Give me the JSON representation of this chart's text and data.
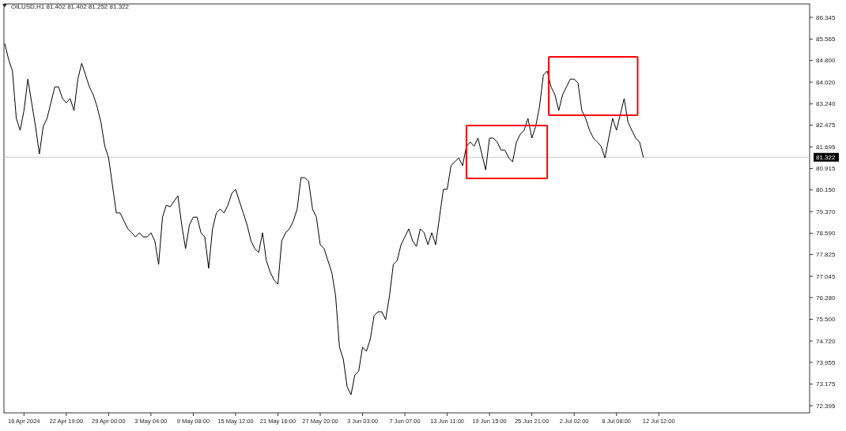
{
  "chart_data": {
    "type": "line",
    "title": "OILUSD,H1  81.402 81.402 81.252 81.322",
    "categories": [
      null,
      null,
      null,
      null,
      null,
      "16 Apr 2024",
      null,
      null,
      null,
      null,
      null,
      null,
      null,
      null,
      null,
      null,
      "22 Apr 19:00",
      null,
      null,
      null,
      null,
      null,
      null,
      null,
      null,
      null,
      null,
      "29 Apr 00:00",
      null,
      null,
      null,
      null,
      null,
      null,
      null,
      null,
      null,
      null,
      "3 May 04:00",
      null,
      null,
      null,
      null,
      null,
      null,
      null,
      null,
      null,
      null,
      "9 May 08:00",
      null,
      null,
      null,
      null,
      null,
      null,
      null,
      null,
      null,
      null,
      "15 May 12:00",
      null,
      null,
      null,
      null,
      null,
      null,
      null,
      null,
      null,
      null,
      "21 May 16:00",
      null,
      null,
      null,
      null,
      null,
      null,
      null,
      null,
      null,
      null,
      "27 May 20:00",
      null,
      null,
      null,
      null,
      null,
      null,
      null,
      null,
      null,
      null,
      "3 Jun 03:00",
      null,
      null,
      null,
      null,
      null,
      null,
      null,
      null,
      null,
      null,
      "7 Jun 07:00",
      null,
      null,
      null,
      null,
      null,
      null,
      null,
      null,
      null,
      null,
      "13 Jun 11:00",
      null,
      null,
      null,
      null,
      null,
      null,
      null,
      null,
      null,
      null,
      "19 Jun 15:00",
      null,
      null,
      null,
      null,
      null,
      null,
      null,
      null,
      null,
      null,
      "25 Jun 21:00",
      null,
      null,
      null,
      null,
      null,
      null,
      null,
      null,
      null,
      null,
      "2 Jul 02:00",
      null,
      null,
      null,
      null,
      null,
      null,
      null,
      null,
      null,
      null,
      "8 Jul 08:00",
      null,
      null,
      null,
      null,
      null,
      null,
      null,
      null,
      null,
      null,
      "12 Jul 12:00",
      null,
      null,
      null,
      null,
      null,
      null,
      null,
      null,
      null,
      null,
      null,
      null,
      null,
      null,
      null,
      null,
      null,
      null,
      null,
      null,
      null,
      null,
      null,
      null,
      null,
      null,
      null,
      null,
      null,
      null,
      null,
      null,
      null,
      null,
      null,
      null,
      null,
      null,
      null
    ],
    "series": [
      {
        "color": "#000000",
        "values": [
          85.41,
          84.84,
          84.42,
          82.72,
          82.29,
          83.0,
          84.13,
          83.28,
          82.43,
          81.44,
          82.43,
          82.72,
          83.28,
          83.85,
          83.85,
          83.43,
          83.28,
          83.43,
          83.0,
          84.13,
          84.7,
          84.28,
          83.85,
          83.57,
          83.14,
          82.58,
          81.72,
          81.3,
          80.31,
          79.32,
          79.32,
          79.03,
          78.75,
          78.61,
          78.46,
          78.61,
          78.46,
          78.46,
          78.61,
          78.32,
          77.47,
          79.17,
          79.6,
          79.54,
          79.74,
          79.94,
          78.89,
          78.04,
          78.89,
          79.17,
          79.17,
          78.61,
          78.46,
          77.33,
          78.75,
          79.32,
          79.46,
          79.32,
          79.6,
          80.02,
          80.17,
          79.74,
          79.32,
          78.89,
          78.32,
          78.04,
          77.9,
          78.61,
          77.61,
          77.19,
          76.91,
          76.76,
          78.32,
          78.61,
          78.75,
          79.03,
          79.46,
          80.59,
          80.59,
          80.45,
          79.46,
          79.17,
          78.18,
          78.04,
          77.61,
          77.19,
          76.34,
          74.5,
          74.07,
          73.08,
          72.79,
          73.5,
          73.64,
          74.5,
          74.35,
          74.78,
          75.63,
          75.77,
          75.77,
          75.49,
          76.34,
          77.47,
          77.61,
          78.18,
          78.46,
          78.75,
          78.32,
          78.12,
          78.75,
          78.61,
          78.18,
          78.61,
          78.18,
          79.17,
          80.17,
          80.17,
          81.02,
          81.16,
          81.3,
          81.02,
          81.72,
          81.87,
          81.72,
          82.01,
          81.44,
          80.87,
          82.01,
          82.01,
          81.87,
          81.58,
          81.58,
          81.3,
          81.16,
          81.87,
          82.15,
          82.29,
          82.72,
          82.01,
          82.43,
          83.14,
          84.28,
          84.42,
          83.85,
          83.57,
          83.0,
          83.57,
          83.85,
          84.13,
          84.13,
          83.99,
          83.0,
          82.72,
          82.29,
          82.01,
          81.87,
          81.72,
          81.3,
          82.01,
          82.72,
          82.29,
          82.86,
          83.43,
          82.58,
          82.29,
          82.01,
          81.87,
          81.32,
          null,
          null,
          null,
          null,
          null,
          null,
          null,
          null,
          null,
          null,
          null,
          null,
          null,
          null,
          null,
          null,
          null,
          null,
          null,
          null,
          null,
          null,
          null,
          null,
          null,
          null,
          null,
          null,
          null,
          null,
          null,
          null,
          null,
          null,
          null,
          null,
          null,
          null,
          null,
          null,
          null,
          null,
          null
        ]
      }
    ],
    "ylim": [
      72.14,
      86.83
    ],
    "yticks": [
      {
        "value": 86.345,
        "label": "86.345"
      },
      {
        "value": 85.565,
        "label": "85.565"
      },
      {
        "value": 84.8,
        "label": "84.800"
      },
      {
        "value": 84.02,
        "label": "84.020"
      },
      {
        "value": 83.24,
        "label": "83.240"
      },
      {
        "value": 82.475,
        "label": "82.475"
      },
      {
        "value": 81.695,
        "label": "81.695"
      },
      {
        "value": 80.915,
        "label": "80.915"
      },
      {
        "value": 80.15,
        "label": "80.150"
      },
      {
        "value": 79.37,
        "label": "79.370"
      },
      {
        "value": 78.59,
        "label": "78.590"
      },
      {
        "value": 77.825,
        "label": "77.825"
      },
      {
        "value": 77.045,
        "label": "77.045"
      },
      {
        "value": 76.28,
        "label": "76.280"
      },
      {
        "value": 75.5,
        "label": "75.500"
      },
      {
        "value": 74.72,
        "label": "74.720"
      },
      {
        "value": 73.955,
        "label": "73.955"
      },
      {
        "value": 73.175,
        "label": "73.175"
      },
      {
        "value": 72.395,
        "label": "72.395"
      }
    ],
    "ref_lines": [
      {
        "axis": "y",
        "value": 81.322,
        "label": "81.322",
        "color": "#c8c8c8"
      }
    ]
  }
}
